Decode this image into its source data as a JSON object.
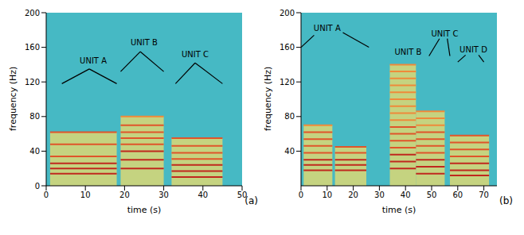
{
  "chart_data": [
    {
      "type": "spectrogram",
      "panel_label": "(a)",
      "x_label": "time (s)",
      "y_label": "frequency (Hz)",
      "xlim": [
        0,
        50
      ],
      "xticks": [
        0,
        10,
        20,
        30,
        40,
        50
      ],
      "ylim": [
        0,
        200
      ],
      "yticks": [
        0,
        40,
        80,
        120,
        160,
        200
      ],
      "units": [
        {
          "name": "UNIT A",
          "segments": [
            {
              "start": 1,
              "end": 18,
              "harmonics": [
                14,
                20,
                26,
                34,
                48,
                62
              ]
            }
          ]
        },
        {
          "name": "UNIT B",
          "segments": [
            {
              "start": 19,
              "end": 30,
              "harmonics": [
                20,
                30,
                40,
                48,
                55,
                62,
                70,
                80
              ]
            }
          ]
        },
        {
          "name": "UNIT C",
          "segments": [
            {
              "start": 32,
              "end": 45,
              "harmonics": [
                10,
                17,
                24,
                31,
                38,
                46,
                55
              ]
            }
          ]
        }
      ],
      "annotations": [
        {
          "text": "UNIT A",
          "x": 12,
          "y": 145,
          "lines": [
            [
              [
                4,
                118
              ],
              [
                11,
                135
              ],
              [
                18,
                118
              ]
            ]
          ]
        },
        {
          "text": "UNIT B",
          "x": 25,
          "y": 166,
          "lines": [
            [
              [
                19,
                132
              ],
              [
                24,
                155
              ],
              [
                30,
                132
              ]
            ]
          ]
        },
        {
          "text": "UNIT C",
          "x": 38,
          "y": 152,
          "lines": [
            [
              [
                33,
                118
              ],
              [
                38,
                142
              ],
              [
                45,
                118
              ]
            ]
          ]
        }
      ]
    },
    {
      "type": "spectrogram",
      "panel_label": "(b)",
      "x_label": "time (s)",
      "y_label": "frequency (Hz)",
      "xlim": [
        0,
        75
      ],
      "xticks": [
        0,
        10,
        20,
        30,
        40,
        50,
        60,
        70
      ],
      "ylim": [
        0,
        200
      ],
      "yticks": [
        40,
        80,
        120,
        160,
        200
      ],
      "units": [
        {
          "name": "UNIT A",
          "segments": [
            {
              "start": 1,
              "end": 12,
              "harmonics": [
                18,
                24,
                30,
                38,
                46,
                54,
                62,
                70
              ]
            },
            {
              "start": 13,
              "end": 25,
              "harmonics": [
                18,
                24,
                30,
                38,
                45
              ]
            }
          ]
        },
        {
          "name": "UNIT B",
          "segments": [
            {
              "start": 34,
              "end": 44,
              "harmonics": [
                20,
                28,
                36,
                44,
                52,
                60,
                68,
                76,
                84,
                92,
                100,
                108,
                116,
                124,
                132,
                140
              ]
            }
          ]
        },
        {
          "name": "UNIT C",
          "segments": [
            {
              "start": 44,
              "end": 55,
              "harmonics": [
                14,
                22,
                30,
                38,
                46,
                54,
                62,
                70,
                78,
                86
              ]
            }
          ]
        },
        {
          "name": "UNIT D",
          "segments": [
            {
              "start": 57,
              "end": 72,
              "harmonics": [
                12,
                18,
                26,
                34,
                42,
                50,
                58
              ]
            }
          ]
        }
      ],
      "annotations": [
        {
          "text": "UNIT A",
          "x": 10,
          "y": 182,
          "lines": [
            [
              [
                0,
                160
              ],
              [
                5,
                174
              ]
            ],
            [
              [
                16,
                177
              ],
              [
                26,
                160
              ]
            ]
          ]
        },
        {
          "text": "UNIT B",
          "x": 41,
          "y": 155,
          "lines": []
        },
        {
          "text": "UNIT C",
          "x": 55,
          "y": 176,
          "lines": [
            [
              [
                53,
                170
              ],
              [
                49,
                150
              ]
            ],
            [
              [
                56,
                170
              ],
              [
                57,
                150
              ]
            ]
          ]
        },
        {
          "text": "UNIT D",
          "x": 66,
          "y": 157,
          "lines": [
            [
              [
                63,
                151
              ],
              [
                60,
                143
              ]
            ],
            [
              [
                68,
                151
              ],
              [
                70,
                143
              ]
            ]
          ]
        }
      ]
    }
  ]
}
